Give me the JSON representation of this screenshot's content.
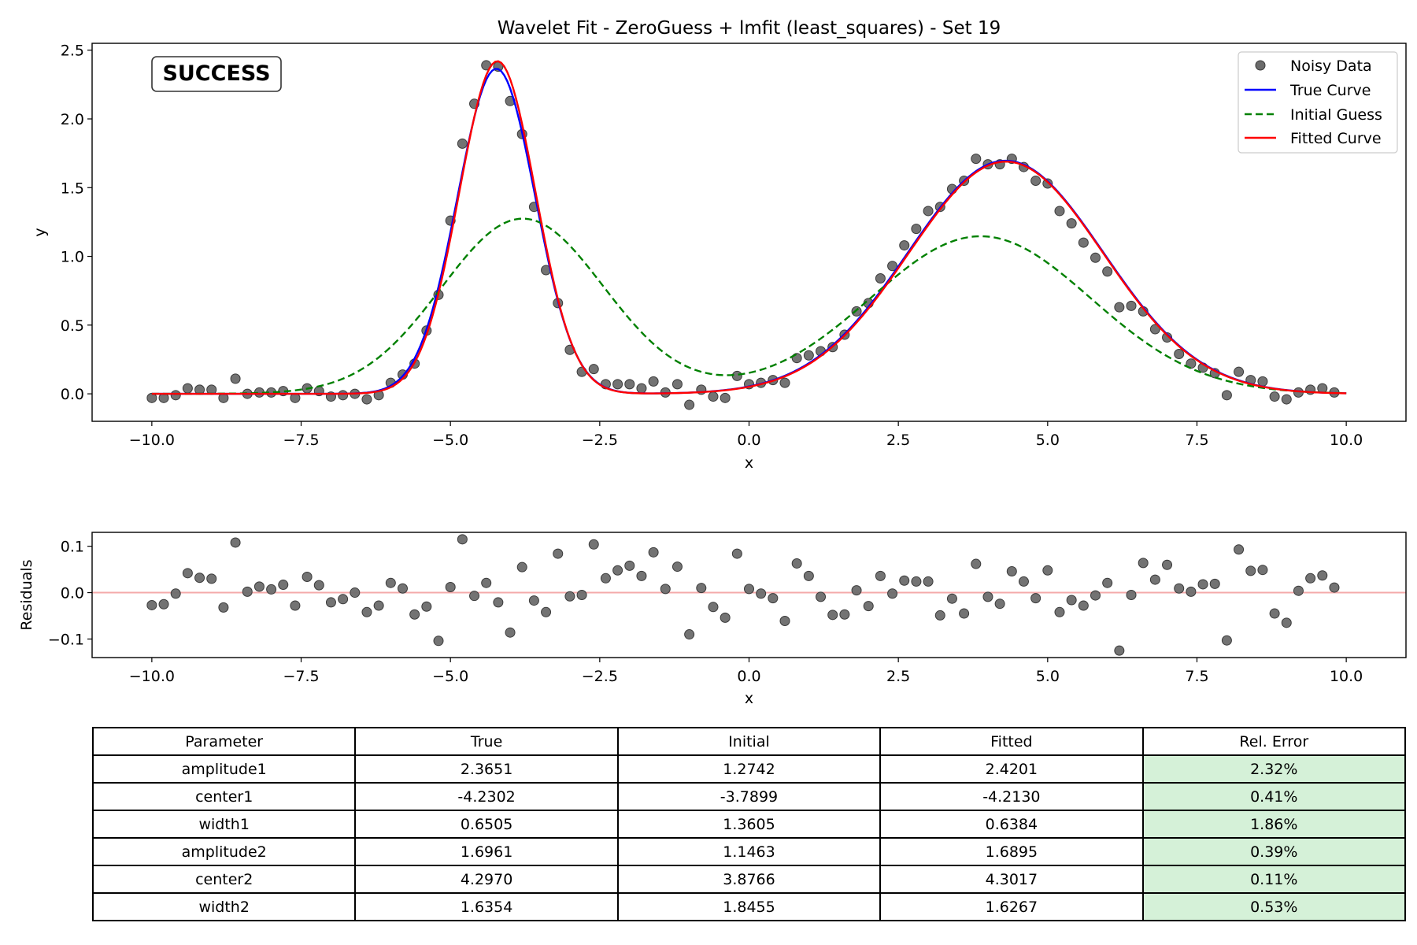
{
  "chart_data": [
    {
      "type": "line",
      "title": "Wavelet Fit - ZeroGuess + lmfit (least_squares) - Set 19",
      "xlabel": "x",
      "ylabel": "y",
      "xlim": [
        -11.0,
        11.0
      ],
      "ylim": [
        -0.2,
        2.55
      ],
      "xticks": [
        -10.0,
        -7.5,
        -5.0,
        -2.5,
        0.0,
        2.5,
        5.0,
        7.5,
        10.0
      ],
      "xtick_labels": [
        "−10.0",
        "−7.5",
        "−5.0",
        "−2.5",
        "0.0",
        "2.5",
        "5.0",
        "7.5",
        "10.0"
      ],
      "yticks": [
        0.0,
        0.5,
        1.0,
        1.5,
        2.0,
        2.5
      ],
      "ytick_labels": [
        "0.0",
        "0.5",
        "1.0",
        "1.5",
        "2.0",
        "2.5"
      ],
      "badge": "SUCCESS",
      "legend_position": "top-right",
      "legend": [
        "Noisy Data",
        "True Curve",
        "Initial Guess",
        "Fitted Curve"
      ],
      "series": [
        {
          "name": "Noisy Data",
          "style": "scatter",
          "color": "#6b6b6b",
          "x_start": -10.0,
          "x_step": 0.2,
          "y": [
            -0.03,
            -0.03,
            -0.01,
            0.04,
            0.03,
            0.03,
            -0.03,
            0.11,
            0.0,
            0.01,
            0.01,
            0.02,
            -0.03,
            0.04,
            0.02,
            -0.02,
            -0.01,
            0.0,
            -0.04,
            -0.01,
            0.08,
            0.14,
            0.22,
            0.46,
            0.72,
            1.26,
            1.82,
            2.11,
            2.39,
            2.38,
            2.13,
            1.89,
            1.36,
            0.9,
            0.66,
            0.32,
            0.16,
            0.18,
            0.07,
            0.07,
            0.07,
            0.04,
            0.09,
            0.01,
            0.07,
            -0.08,
            0.03,
            -0.02,
            -0.03,
            0.13,
            0.07,
            0.08,
            0.1,
            0.08,
            0.26,
            0.28,
            0.31,
            0.34,
            0.43,
            0.6,
            0.66,
            0.84,
            0.93,
            1.08,
            1.2,
            1.33,
            1.36,
            1.49,
            1.55,
            1.71,
            1.67,
            1.67,
            1.71,
            1.65,
            1.55,
            1.53,
            1.33,
            1.24,
            1.1,
            0.99,
            0.89,
            0.63,
            0.64,
            0.6,
            0.47,
            0.41,
            0.29,
            0.22,
            0.19,
            0.15,
            -0.01,
            0.16,
            0.1,
            0.09,
            -0.02,
            -0.04,
            0.01,
            0.03,
            0.04,
            0.01
          ]
        },
        {
          "name": "True Curve",
          "style": "line",
          "color": "#0000ff",
          "model": {
            "amplitude1": 2.3651,
            "center1": -4.2302,
            "width1": 0.6505,
            "amplitude2": 1.6961,
            "center2": 4.297,
            "width2": 1.6354
          }
        },
        {
          "name": "Initial Guess",
          "style": "dashed",
          "color": "#008000",
          "model": {
            "amplitude1": 1.2742,
            "center1": -3.7899,
            "width1": 1.3605,
            "amplitude2": 1.1463,
            "center2": 3.8766,
            "width2": 1.8455
          }
        },
        {
          "name": "Fitted Curve",
          "style": "line",
          "color": "#ff0000",
          "model": {
            "amplitude1": 2.4201,
            "center1": -4.213,
            "width1": 0.6384,
            "amplitude2": 1.6895,
            "center2": 4.3017,
            "width2": 1.6267
          }
        }
      ]
    },
    {
      "type": "scatter",
      "xlabel": "x",
      "ylabel": "Residuals",
      "xlim": [
        -11.0,
        11.0
      ],
      "ylim": [
        -0.14,
        0.13
      ],
      "xticks": [
        -10.0,
        -7.5,
        -5.0,
        -2.5,
        0.0,
        2.5,
        5.0,
        7.5,
        10.0
      ],
      "xtick_labels": [
        "−10.0",
        "−7.5",
        "−5.0",
        "−2.5",
        "0.0",
        "2.5",
        "5.0",
        "7.5",
        "10.0"
      ],
      "yticks": [
        -0.1,
        0.0,
        0.1
      ],
      "ytick_labels": [
        "−0.1",
        "0.0",
        "0.1"
      ],
      "zero_line_color": "#f4aaaa",
      "series": [
        {
          "name": "Residuals",
          "color": "#6b6b6b",
          "x_start": -10.0,
          "x_step": 0.2,
          "y": [
            -0.027,
            -0.025,
            -0.002,
            0.042,
            0.032,
            0.03,
            -0.032,
            0.108,
            0.002,
            0.013,
            0.007,
            0.017,
            -0.028,
            0.034,
            0.016,
            -0.021,
            -0.014,
            0.0,
            -0.042,
            -0.028,
            0.021,
            0.009,
            -0.047,
            -0.03,
            -0.104,
            0.012,
            0.115,
            -0.007,
            0.021,
            -0.021,
            -0.086,
            0.055,
            -0.017,
            -0.042,
            0.084,
            -0.008,
            -0.005,
            0.104,
            0.031,
            0.048,
            0.058,
            0.036,
            0.087,
            0.008,
            0.056,
            -0.09,
            0.01,
            -0.031,
            -0.054,
            0.084,
            0.008,
            -0.002,
            -0.012,
            -0.061,
            0.063,
            0.036,
            -0.009,
            -0.048,
            -0.047,
            0.005,
            -0.029,
            0.036,
            -0.002,
            0.026,
            0.024,
            0.024,
            -0.049,
            -0.013,
            -0.045,
            0.062,
            -0.009,
            -0.024,
            0.046,
            0.024,
            -0.012,
            0.048,
            -0.042,
            -0.016,
            -0.028,
            -0.006,
            0.021,
            -0.125,
            -0.005,
            0.064,
            0.028,
            0.06,
            0.009,
            0.002,
            0.018,
            0.019,
            -0.103,
            0.093,
            0.047,
            0.049,
            -0.045,
            -0.065,
            0.004,
            0.031,
            0.037,
            0.011
          ]
        }
      ]
    },
    {
      "type": "table",
      "headers": [
        "Parameter",
        "True",
        "Initial",
        "Fitted",
        "Rel. Error"
      ],
      "rows": [
        [
          "amplitude1",
          "2.3651",
          "1.2742",
          "2.4201",
          "2.32%"
        ],
        [
          "center1",
          "-4.2302",
          "-3.7899",
          "-4.2130",
          "0.41%"
        ],
        [
          "width1",
          "0.6505",
          "1.3605",
          "0.6384",
          "1.86%"
        ],
        [
          "amplitude2",
          "1.6961",
          "1.1463",
          "1.6895",
          "0.39%"
        ],
        [
          "center2",
          "4.2970",
          "3.8766",
          "4.3017",
          "0.11%"
        ],
        [
          "width2",
          "1.6354",
          "1.8455",
          "1.6267",
          "0.53%"
        ]
      ],
      "error_cell_color": "#d5f1d8"
    }
  ]
}
